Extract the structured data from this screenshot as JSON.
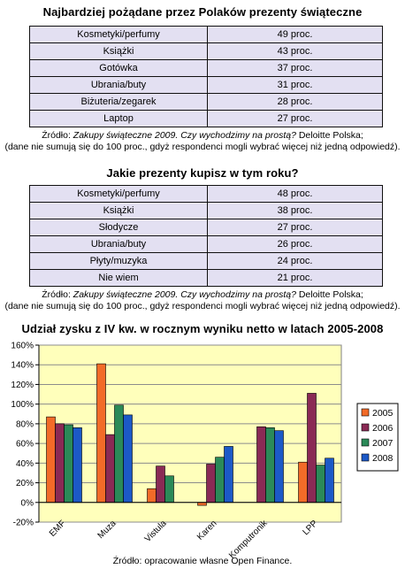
{
  "section1": {
    "title": "Najbardziej pożądane przez Polaków prezenty świąteczne",
    "rows": [
      {
        "item": "Kosmetyki/perfumy",
        "value": "49 proc."
      },
      {
        "item": "Książki",
        "value": "43 proc."
      },
      {
        "item": "Gotówka",
        "value": "37 proc."
      },
      {
        "item": "Ubrania/buty",
        "value": "31 proc."
      },
      {
        "item": "Biżuteria/zegarek",
        "value": "28 proc."
      },
      {
        "item": "Laptop",
        "value": "27 proc."
      }
    ],
    "source_prefix": "Źródło: ",
    "source_title": "Zakupy świąteczne 2009. Czy wychodzimy na prostą?",
    "source_suffix": " Deloitte Polska;",
    "note": "(dane nie sumują się do 100 proc., gdyż respondenci mogli wybrać więcej niż jedną odpowiedź)."
  },
  "section2": {
    "title": "Jakie prezenty kupisz w tym roku?",
    "rows": [
      {
        "item": "Kosmetyki/perfumy",
        "value": "48 proc."
      },
      {
        "item": "Książki",
        "value": "38 proc."
      },
      {
        "item": "Słodycze",
        "value": "27 proc."
      },
      {
        "item": "Ubrania/buty",
        "value": "26 proc."
      },
      {
        "item": "Płyty/muzyka",
        "value": "24 proc."
      },
      {
        "item": "Nie wiem",
        "value": "21 proc."
      }
    ],
    "source_prefix": "Źródło: ",
    "source_title": "Zakupy świąteczne 2009. Czy wychodzimy na prostą?",
    "source_suffix": " Deloitte Polska;",
    "note": "(dane nie sumują się do 100 proc., gdyż respondenci mogli wybrać więcej niż jedną odpowiedź)."
  },
  "chart_data": {
    "type": "bar",
    "title": "Udział zysku z IV kw. w rocznym wyniku netto w latach 2005-2008",
    "categories": [
      "EMF",
      "Muza",
      "Vistula",
      "Karen",
      "Komputronik",
      "LPP"
    ],
    "series": [
      {
        "name": "2005",
        "color": "#f26b28",
        "values": [
          87,
          141,
          14,
          -3,
          null,
          41
        ]
      },
      {
        "name": "2006",
        "color": "#8a2a55",
        "values": [
          80,
          69,
          37,
          39,
          77,
          111
        ]
      },
      {
        "name": "2007",
        "color": "#2b8a58",
        "values": [
          79,
          99,
          27,
          46,
          76,
          38
        ]
      },
      {
        "name": "2008",
        "color": "#1c59c7",
        "values": [
          76,
          89,
          null,
          57,
          73,
          45
        ]
      }
    ],
    "ylim": [
      -20,
      160
    ],
    "yticks": [
      -20,
      0,
      20,
      40,
      60,
      80,
      100,
      120,
      140,
      160
    ],
    "ytick_labels": [
      "-20%",
      "0%",
      "20%",
      "40%",
      "60%",
      "80%",
      "100%",
      "120%",
      "140%",
      "160%"
    ],
    "grid": true,
    "legend": "right",
    "background": "#ffffbb",
    "source": "Źródło: opracowanie własne Open Finance."
  }
}
